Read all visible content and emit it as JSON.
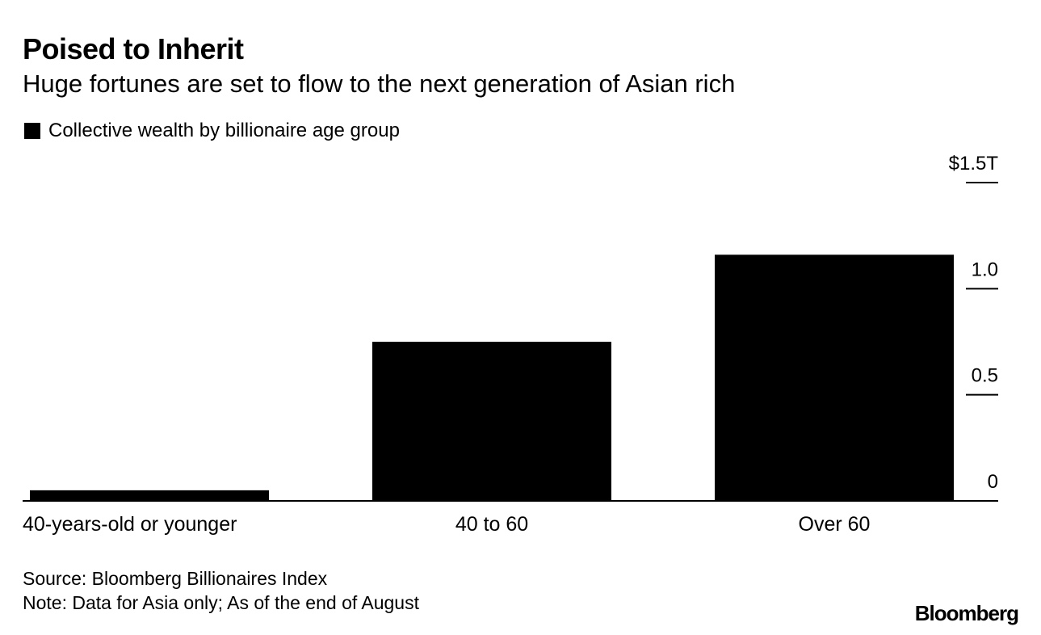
{
  "chart_data": {
    "type": "bar",
    "title": "Poised to Inherit",
    "subtitle": "Huge fortunes are set to flow to the next generation of Asian rich",
    "legend": [
      {
        "label": "Collective wealth by billionaire age group",
        "color": "#000000"
      }
    ],
    "categories": [
      "40-years-old or younger",
      "40 to 60",
      "Over 60"
    ],
    "values": [
      0.05,
      0.75,
      1.16
    ],
    "unit": "$T",
    "ylim": [
      0,
      1.5
    ],
    "yticks": [
      0,
      0.5,
      1.0,
      1.5
    ],
    "ytick_labels": [
      "0",
      "0.5",
      "1.0",
      "$1.5T"
    ],
    "y_axis_position": "right",
    "xlabel": "",
    "ylabel": "",
    "grid": false
  },
  "footer": {
    "source": "Source: Bloomberg Billionaires Index",
    "note": "Note: Data for Asia only; As of the end of August",
    "logo": "Bloomberg"
  },
  "colors": {
    "bar": "#000000",
    "background": "#ffffff",
    "text": "#000000"
  }
}
